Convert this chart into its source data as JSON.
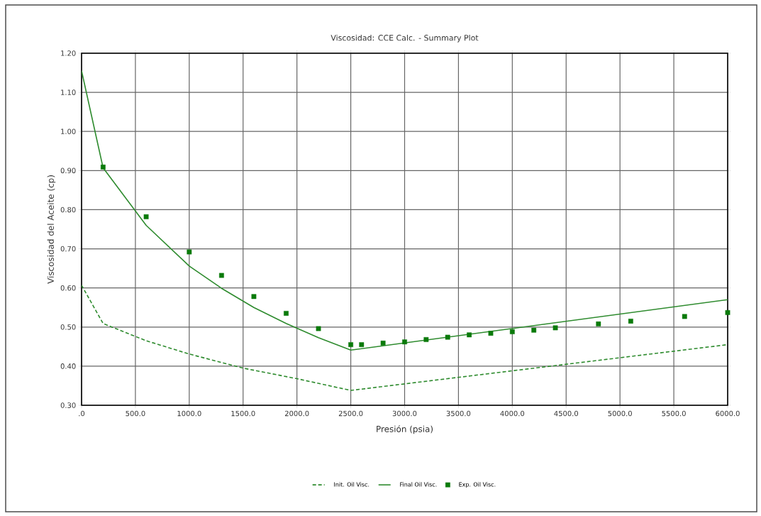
{
  "chart_data": {
    "type": "line",
    "title": "Viscosidad: CCE Calc. - Summary Plot",
    "xlabel": "Presión (psia)",
    "ylabel": "Viscosidad del Aceite (cp)",
    "xlim": [
      0,
      6000
    ],
    "ylim": [
      0.3,
      1.2
    ],
    "xticks": [
      {
        "value": 0,
        "label": ".0"
      },
      {
        "value": 500,
        "label": "500.0"
      },
      {
        "value": 1000,
        "label": "1000.0"
      },
      {
        "value": 1500,
        "label": "1500.0"
      },
      {
        "value": 2000,
        "label": "2000.0"
      },
      {
        "value": 2500,
        "label": "2500.0"
      },
      {
        "value": 3000,
        "label": "3000.0"
      },
      {
        "value": 3500,
        "label": "3500.0"
      },
      {
        "value": 4000,
        "label": "4000.0"
      },
      {
        "value": 4500,
        "label": "4500.0"
      },
      {
        "value": 5000,
        "label": "5000.0"
      },
      {
        "value": 5500,
        "label": "5500.0"
      },
      {
        "value": 6000,
        "label": "6000.0"
      }
    ],
    "yticks": [
      {
        "value": 0.3,
        "label": "0.30"
      },
      {
        "value": 0.4,
        "label": "0.40"
      },
      {
        "value": 0.5,
        "label": "0.50"
      },
      {
        "value": 0.6,
        "label": "0.60"
      },
      {
        "value": 0.7,
        "label": "0.70"
      },
      {
        "value": 0.8,
        "label": "0.80"
      },
      {
        "value": 0.9,
        "label": "0.90"
      },
      {
        "value": 1.0,
        "label": "1.00"
      },
      {
        "value": 1.1,
        "label": "1.10"
      },
      {
        "value": 1.2,
        "label": "1.20"
      }
    ],
    "grid": true,
    "legend": "bottom",
    "series": [
      {
        "name": "Init. Oil Visc.",
        "color": "#2e8b2e",
        "line_style": "dashed",
        "marker": "none",
        "x": [
          0,
          200,
          600,
          1000,
          1500,
          2000,
          2500,
          6000
        ],
        "values": [
          0.607,
          0.509,
          0.465,
          0.431,
          0.395,
          0.368,
          0.338,
          0.455
        ]
      },
      {
        "name": "Final Oil Visc.",
        "color": "#2e8b2e",
        "line_style": "solid",
        "marker": "none",
        "x": [
          0,
          200,
          600,
          1000,
          1300,
          1600,
          1900,
          2200,
          2500,
          6000
        ],
        "values": [
          1.155,
          0.907,
          0.76,
          0.656,
          0.599,
          0.55,
          0.509,
          0.473,
          0.441,
          0.57
        ]
      },
      {
        "name": "Exp. Oil Visc.",
        "type": "scatter",
        "color": "#0a7a0a",
        "marker": "square",
        "x": [
          200,
          600,
          1000,
          1300,
          1600,
          1900,
          2200,
          2500,
          2600,
          2800,
          3000,
          3200,
          3400,
          3600,
          3800,
          4000,
          4200,
          4400,
          4800,
          5100,
          5600,
          6000
        ],
        "values": [
          0.909,
          0.782,
          0.692,
          0.632,
          0.578,
          0.535,
          0.496,
          0.455,
          0.455,
          0.459,
          0.462,
          0.468,
          0.474,
          0.48,
          0.484,
          0.488,
          0.492,
          0.498,
          0.508,
          0.515,
          0.527,
          0.537
        ]
      }
    ]
  }
}
